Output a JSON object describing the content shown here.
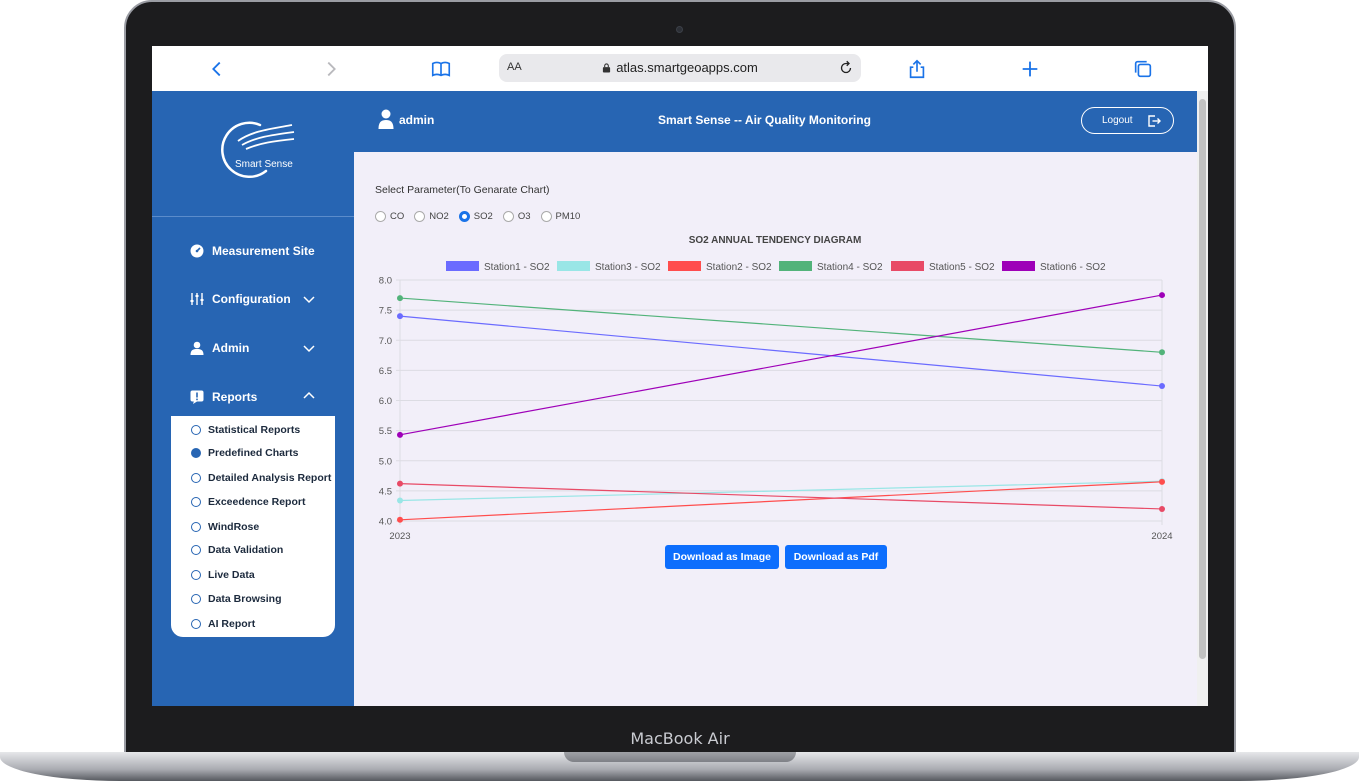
{
  "device": {
    "label": "MacBook Air"
  },
  "browser": {
    "aa_label": "AA",
    "url": "atlas.smartgeoapps.com"
  },
  "sidebar": {
    "logo_text": "Smart Sense",
    "items": [
      {
        "label": "Measurement Site",
        "icon": "gauge-icon"
      },
      {
        "label": "Configuration",
        "icon": "sliders-icon"
      },
      {
        "label": "Admin",
        "icon": "user-icon"
      },
      {
        "label": "Reports",
        "icon": "report-icon"
      }
    ],
    "reports_submenu": [
      {
        "label": "Statistical Reports",
        "active": false
      },
      {
        "label": "Predefined Charts",
        "active": true
      },
      {
        "label": "Detailed Analysis Report",
        "active": false
      },
      {
        "label": "Exceedence Report",
        "active": false
      },
      {
        "label": "WindRose",
        "active": false
      },
      {
        "label": "Data Validation",
        "active": false
      },
      {
        "label": "Live Data",
        "active": false
      },
      {
        "label": "Data Browsing",
        "active": false
      },
      {
        "label": "AI Report",
        "active": false
      }
    ]
  },
  "header": {
    "user": "admin",
    "title": "Smart Sense -- Air Quality Monitoring",
    "logout_label": "Logout"
  },
  "params": {
    "label": "Select Parameter(To Genarate Chart)",
    "options": [
      "CO",
      "NO2",
      "SO2",
      "O3",
      "PM10"
    ],
    "selected": "SO2"
  },
  "buttons": {
    "download_image": "Download as Image",
    "download_pdf": "Download as Pdf"
  },
  "chart_data": {
    "type": "line",
    "title": "SO2 ANNUAL TENDENCY DIAGRAM",
    "categories": [
      "2023",
      "2024"
    ],
    "ylim": [
      4.0,
      8.0
    ],
    "yticks": [
      "4.0",
      "4.5",
      "5.0",
      "5.5",
      "6.0",
      "6.5",
      "7.0",
      "7.5",
      "8.0"
    ],
    "grid": true,
    "legend_position": "top",
    "series": [
      {
        "name": "Station1 - SO2",
        "color": "#6b6bff",
        "values": [
          7.4,
          6.24
        ]
      },
      {
        "name": "Station3 - SO2",
        "color": "#99e6e6",
        "values": [
          4.34,
          4.66
        ]
      },
      {
        "name": "Station2 - SO2",
        "color": "#ff4d4d",
        "values": [
          4.02,
          4.65
        ]
      },
      {
        "name": "Station4 - SO2",
        "color": "#52b37a",
        "values": [
          7.7,
          6.8
        ]
      },
      {
        "name": "Station5 - SO2",
        "color": "#e84a66",
        "values": [
          4.62,
          4.2
        ]
      },
      {
        "name": "Station6 - SO2",
        "color": "#9e00b8",
        "values": [
          5.43,
          7.75
        ]
      }
    ]
  }
}
